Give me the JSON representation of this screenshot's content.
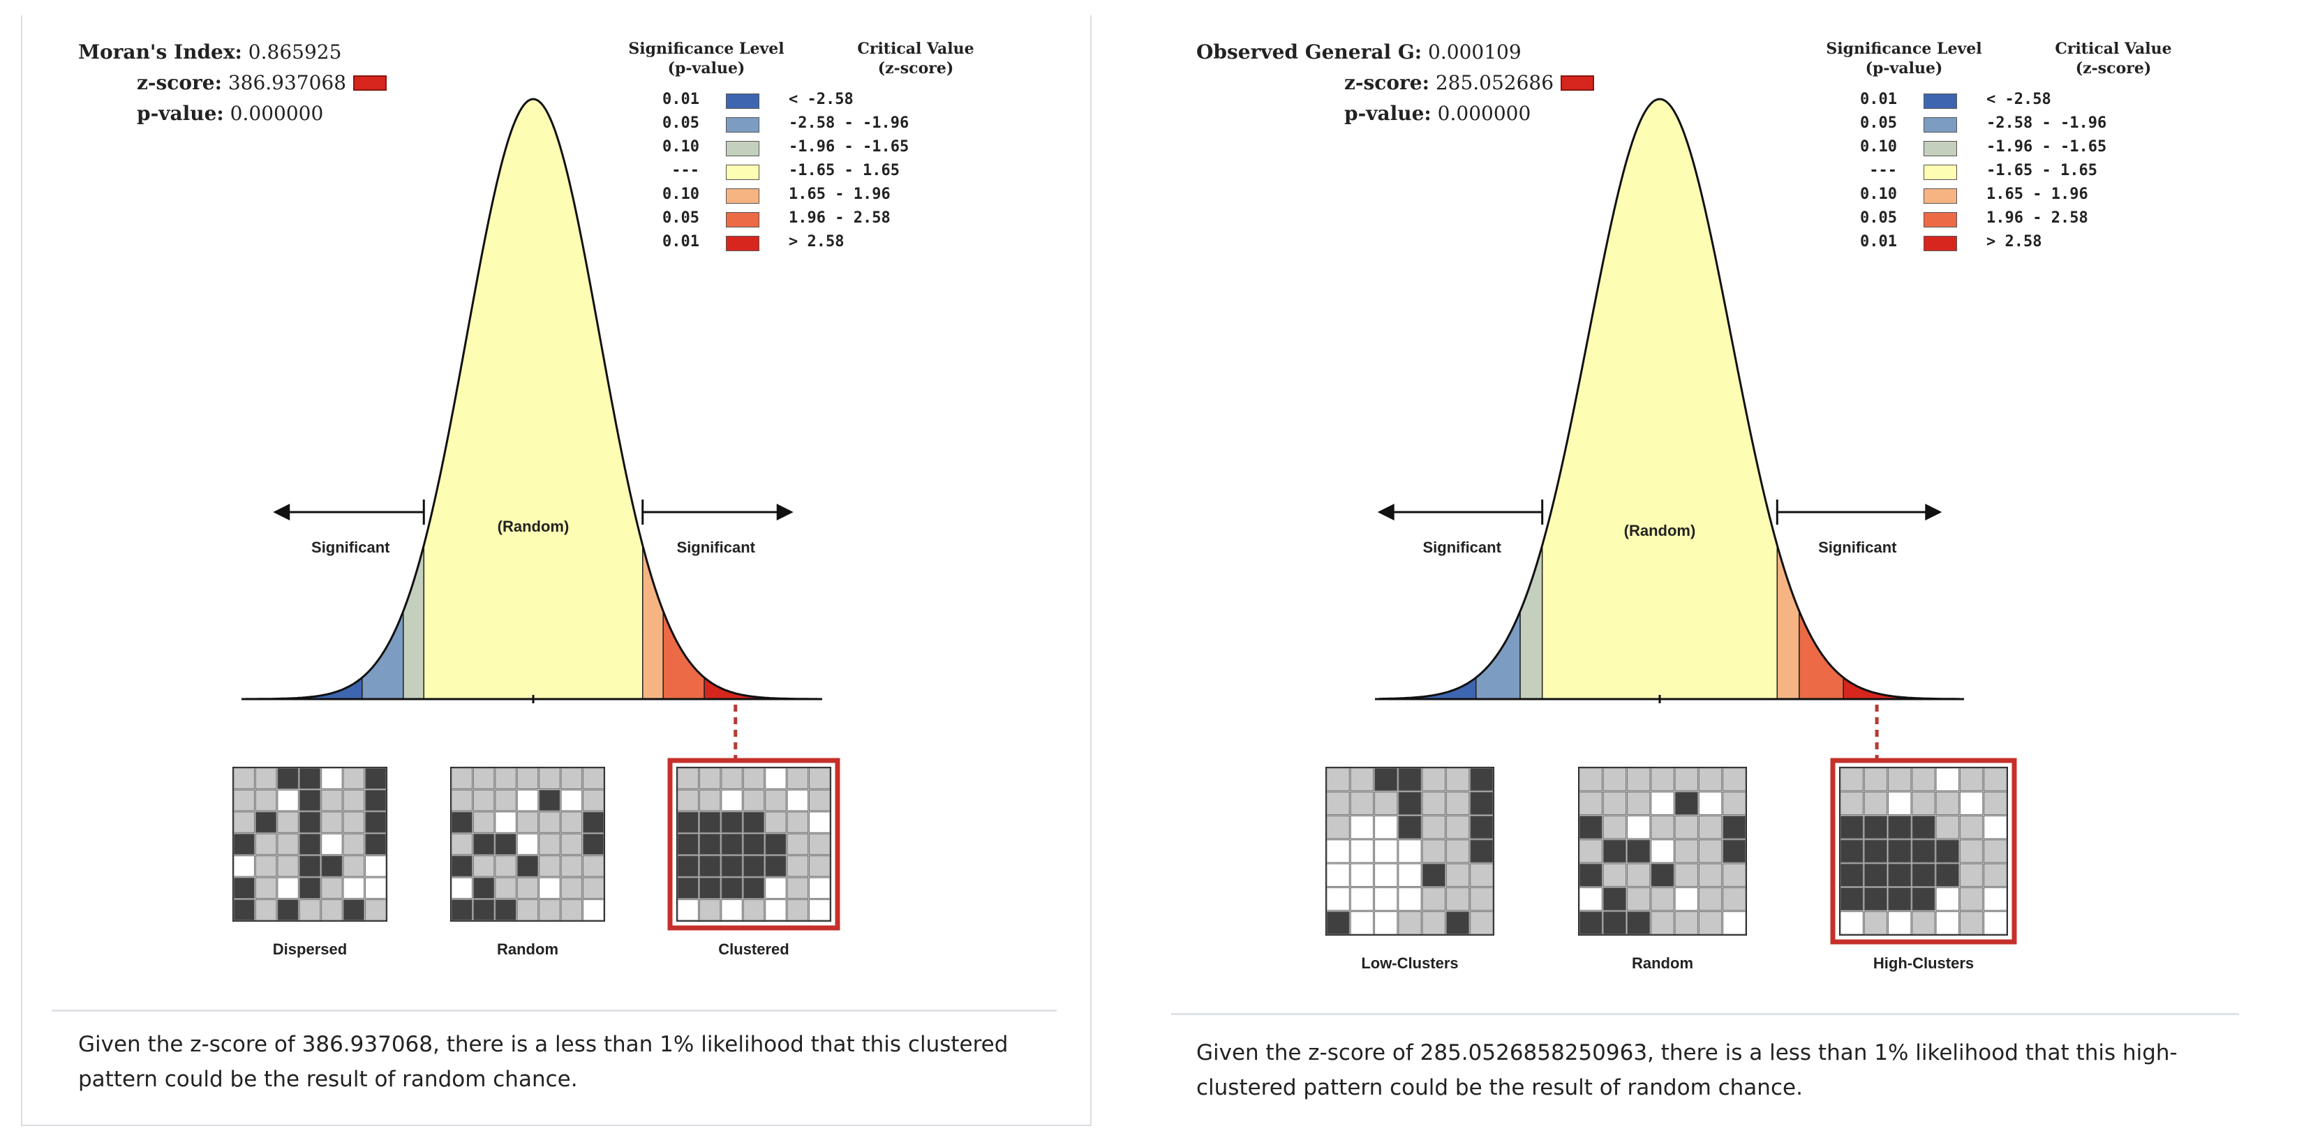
{
  "left": {
    "stat1_label": "Moran's Index:",
    "stat1_value": "0.865925",
    "z_label": "z-score:",
    "z_value": "386.937068",
    "p_label": "p-value:",
    "p_value": "0.000000",
    "caption": "Given the z-score of 386.937068, there is a less than 1% likelihood that this clustered pattern could be the result of random chance.",
    "map_labels": [
      "Dispersed",
      "Random",
      "Clustered"
    ]
  },
  "right": {
    "stat1_label": "Observed General G:",
    "stat1_value": "0.000109",
    "z_label": "z-score:",
    "z_value": "285.052686",
    "p_label": "p-value:",
    "p_value": "0.000000",
    "caption": "Given the z-score of 285.0526858250963, there is a less than 1% likelihood that this high-clustered pattern could be the result of random chance.",
    "map_labels": [
      "Low-Clusters",
      "Random",
      "High-Clusters"
    ]
  },
  "legend": {
    "sig_header_1": "Significance Level",
    "sig_header_2": "(p-value)",
    "cv_header_1": "Critical Value",
    "cv_header_2": "(z-score)",
    "rows": [
      {
        "p": "0.01",
        "cv": "< -2.58",
        "color": "#3e66b0"
      },
      {
        "p": "0.05",
        "cv": "-2.58 - -1.96",
        "color": "#7d9cc2"
      },
      {
        "p": "0.10",
        "cv": "-1.96 - -1.65",
        "color": "#c4cfbd"
      },
      {
        "p": "---",
        "cv": "-1.65 - 1.65",
        "color": "#fefdb4"
      },
      {
        "p": "0.10",
        "cv": "1.65 - 1.96",
        "color": "#f6b482"
      },
      {
        "p": "0.05",
        "cv": "1.96 - 2.58",
        "color": "#ec6a45"
      },
      {
        "p": "0.01",
        "cv": "> 2.58",
        "color": "#d7261e"
      }
    ]
  },
  "curve": {
    "random_label": "(Random)",
    "significant_label": "Significant"
  }
}
